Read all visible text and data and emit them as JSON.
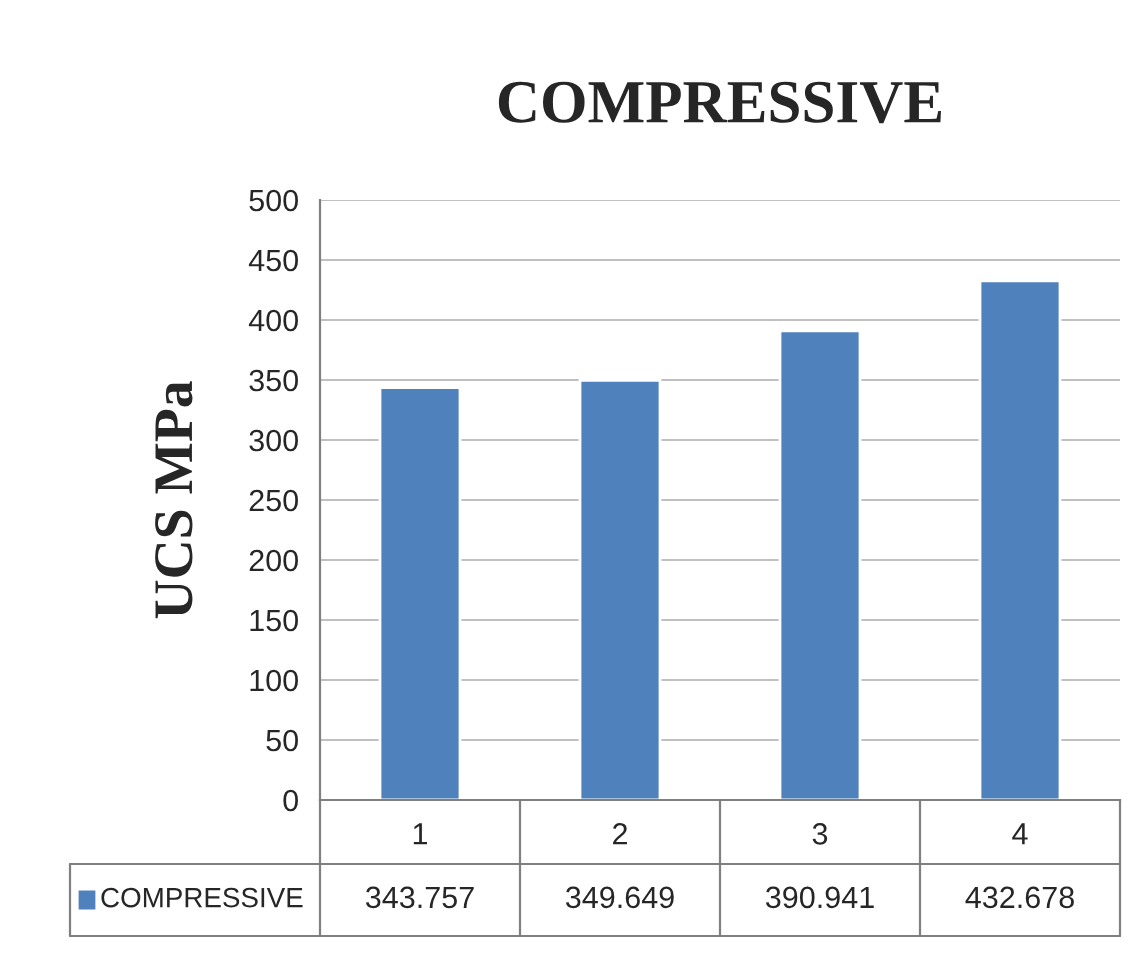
{
  "chart_data": {
    "type": "bar",
    "title": "COMPRESSIVE",
    "ylabel": "UCS MPa",
    "categories": [
      "1",
      "2",
      "3",
      "4"
    ],
    "series": [
      {
        "name": "COMPRESSIVE",
        "color": "#4f81bd",
        "values": [
          343.757,
          349.649,
          390.941,
          432.678
        ]
      }
    ],
    "ylim": [
      0,
      500
    ],
    "yticks": [
      0,
      50,
      100,
      150,
      200,
      250,
      300,
      350,
      400,
      450,
      500
    ],
    "grid": "y",
    "legend": "bottom",
    "data_labels": true
  }
}
